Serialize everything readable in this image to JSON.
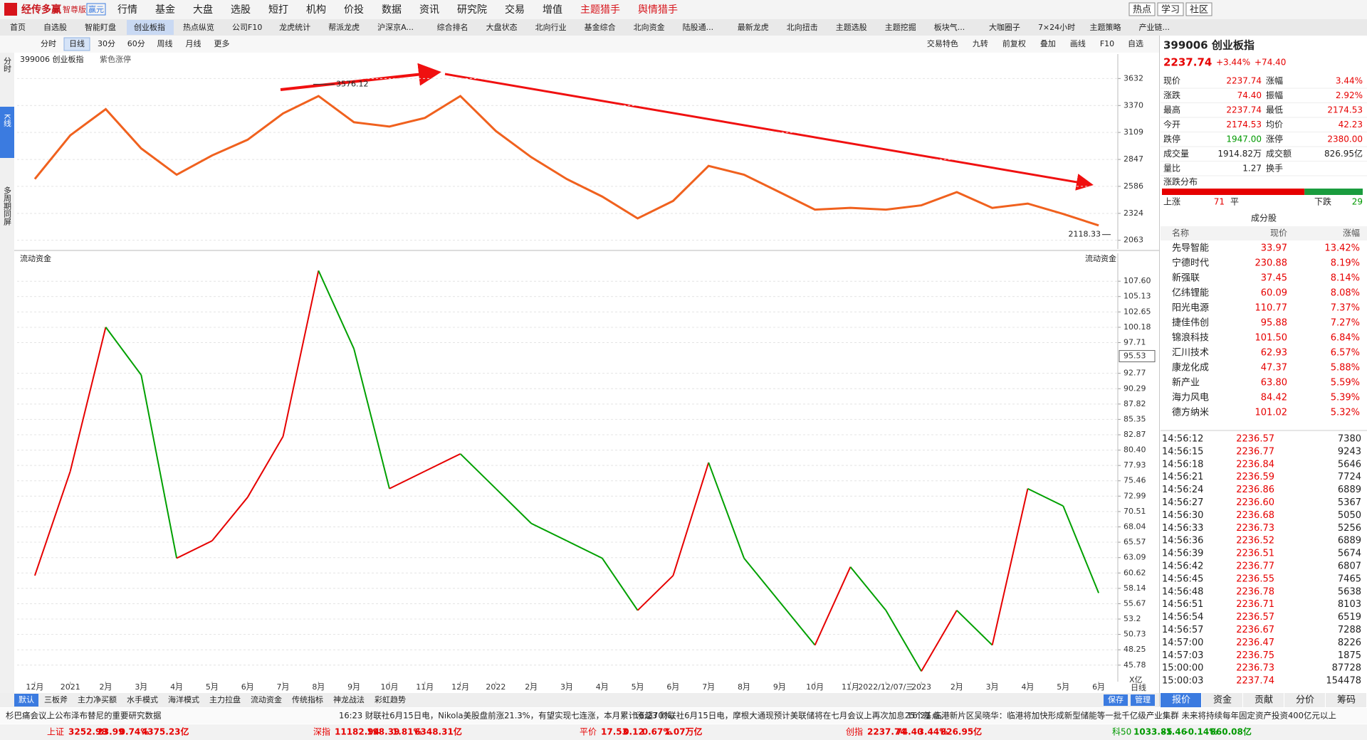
{
  "app": {
    "logo": "经传多赢",
    "edition": "智尊版",
    "badge": "赢元"
  },
  "menu": [
    "行情",
    "基金",
    "大盘",
    "选股",
    "短打",
    "机构",
    "价投",
    "数据",
    "资讯",
    "研究院",
    "交易",
    "增值",
    "主题猎手",
    "舆情猎手"
  ],
  "top_right": [
    "热点",
    "学习",
    "社区"
  ],
  "tabs": [
    "首页",
    "自选股",
    "智能盯盘",
    "创业板指",
    "热点纵览",
    "公司F10",
    "龙虎统计",
    "帮派龙虎",
    "沪深京A...",
    "综合排名",
    "大盘状态",
    "北向行业",
    "基金综合",
    "北向资金",
    "陆股通...",
    "最新龙虎",
    "北向扭击",
    "主题选股",
    "主题挖掘",
    "板块气...",
    "大咖圈子",
    "7×24小时",
    "主题策略",
    "产业链..."
  ],
  "periods": [
    "分时",
    "日线",
    "30分",
    "60分",
    "周线",
    "月线",
    "更多"
  ],
  "tools": [
    "交易特色",
    "九转",
    "前复权",
    "叠加",
    "画线",
    "F10",
    "自选"
  ],
  "side_tabs": [
    "分时",
    "K线",
    "多周期同屏"
  ],
  "chart_data": [
    {
      "type": "line",
      "title": "399006 创业板指",
      "subtitle": "紫色涨停",
      "color": "#f0611e",
      "values": [
        2657,
        3081,
        3335,
        2954,
        2699,
        2886,
        3038,
        3293,
        3462,
        3208,
        3166,
        3250,
        3462,
        3123,
        2869,
        2657,
        2487,
        2275,
        2445,
        2784,
        2699,
        2530,
        2360,
        2377,
        2360,
        2402,
        2530,
        2377,
        2419,
        2318,
        2207
      ],
      "ylim": [
        1978,
        3869
      ],
      "yticks": [
        2063,
        2324,
        2586,
        2847,
        3109,
        3370,
        3632
      ],
      "grid": true,
      "high": 3576.12,
      "low": 2118.33
    },
    {
      "type": "line",
      "title": "流动资金",
      "right_title": "流动资金",
      "axis_unit": "X亿",
      "period_label": "日线",
      "categories": [
        "12月",
        "2021",
        "2月",
        "3月",
        "4月",
        "5月",
        "6月",
        "7月",
        "8月",
        "9月",
        "10月",
        "11月",
        "12月",
        "2022",
        "2月",
        "3月",
        "4月",
        "5月",
        "6月",
        "7月",
        "8月",
        "9月",
        "10月",
        "11月",
        "2022/12/07/三",
        "2023",
        "2月",
        "3月",
        "4月",
        "5月",
        "6月"
      ],
      "values": [
        60.2,
        77.0,
        100.2,
        92.5,
        63.0,
        65.8,
        72.8,
        82.6,
        109.3,
        96.7,
        74.2,
        77.0,
        79.8,
        74.2,
        68.6,
        65.8,
        63.0,
        54.6,
        60.2,
        78.4,
        63.0,
        56.0,
        49.0,
        61.6,
        54.6,
        44.8,
        54.6,
        49.0,
        74.2,
        71.4,
        57.4
      ],
      "up_color": "#e60000",
      "down_color": "#00a000",
      "ylim": [
        43.12,
        112.09
      ],
      "yticks": [
        45.78,
        48.25,
        50.73,
        53.2,
        55.67,
        58.14,
        60.62,
        63.09,
        65.57,
        68.04,
        70.51,
        72.99,
        75.46,
        77.93,
        {
          "value": 80.4,
          "label": "80.40"
        },
        82.87,
        85.35,
        87.82,
        90.29,
        92.77,
        97.71,
        100.18,
        102.65,
        105.13,
        {
          "value": 107.6,
          "label": "107.60"
        }
      ],
      "grid": true,
      "current_value": 95.53
    }
  ],
  "quote": {
    "code_name": "399006 创业板指",
    "price": "2237.74",
    "change_pct": "+3.44%",
    "change": "+74.40",
    "rows": [
      [
        "现价",
        "2237.74",
        "涨幅",
        "3.44%"
      ],
      [
        "涨跌",
        "74.40",
        "振幅",
        "2.92%"
      ],
      [
        "最高",
        "2237.74",
        "最低",
        "2174.53"
      ],
      [
        "今开",
        "2174.53",
        "均价",
        "42.23"
      ],
      [
        "跌停",
        "1947.00",
        "涨停",
        "2380.00"
      ],
      [
        "成交量",
        "1914.82万",
        "成交额",
        "826.95亿"
      ],
      [
        "量比",
        "1.27",
        "换手",
        ""
      ]
    ]
  },
  "distribution": {
    "title": "涨跌分布",
    "up_label": "上涨",
    "up": 71,
    "flat_label": "平",
    "down_label": "下跌",
    "down": 29
  },
  "constituents": {
    "title": "成分股",
    "headers": [
      "名称",
      "现价",
      "涨幅"
    ],
    "rows": [
      [
        "先导智能",
        "33.97",
        "13.42%"
      ],
      [
        "宁德时代",
        "230.88",
        "8.19%"
      ],
      [
        "新强联",
        "37.45",
        "8.14%"
      ],
      [
        "亿纬锂能",
        "60.09",
        "8.08%"
      ],
      [
        "阳光电源",
        "110.77",
        "7.37%"
      ],
      [
        "捷佳伟创",
        "95.88",
        "7.27%"
      ],
      [
        "锦浪科技",
        "101.50",
        "6.84%"
      ],
      [
        "汇川技术",
        "62.93",
        "6.57%"
      ],
      [
        "康龙化成",
        "47.37",
        "5.88%"
      ],
      [
        "新产业",
        "63.80",
        "5.59%"
      ],
      [
        "海力风电",
        "84.42",
        "5.39%"
      ],
      [
        "德方纳米",
        "101.02",
        "5.32%"
      ]
    ]
  },
  "trades": [
    [
      "14:56:12",
      "2236.57",
      "7380"
    ],
    [
      "14:56:15",
      "2236.77",
      "9243"
    ],
    [
      "14:56:18",
      "2236.84",
      "5646"
    ],
    [
      "14:56:21",
      "2236.59",
      "7724"
    ],
    [
      "14:56:24",
      "2236.86",
      "6889"
    ],
    [
      "14:56:27",
      "2236.60",
      "5367"
    ],
    [
      "14:56:30",
      "2236.68",
      "5050"
    ],
    [
      "14:56:33",
      "2236.73",
      "5256"
    ],
    [
      "14:56:36",
      "2236.52",
      "6889"
    ],
    [
      "14:56:39",
      "2236.51",
      "5674"
    ],
    [
      "14:56:42",
      "2236.77",
      "6807"
    ],
    [
      "14:56:45",
      "2236.55",
      "7465"
    ],
    [
      "14:56:48",
      "2236.78",
      "5638"
    ],
    [
      "14:56:51",
      "2236.71",
      "8103"
    ],
    [
      "14:56:54",
      "2236.57",
      "6519"
    ],
    [
      "14:56:57",
      "2236.67",
      "7288"
    ],
    [
      "14:57:00",
      "2236.47",
      "8226"
    ],
    [
      "14:57:03",
      "2236.75",
      "1875"
    ],
    [
      "15:00:00",
      "2236.73",
      "87728"
    ],
    [
      "15:00:03",
      "2237.74",
      "154478"
    ]
  ],
  "panel_tabs": [
    "报价",
    "资金",
    "贡献",
    "分价",
    "筹码"
  ],
  "indicator_tabs": [
    "默认",
    "三板斧",
    "主力净买额",
    "水手模式",
    "海洋模式",
    "主力拉盘",
    "流动资金",
    "传统指标",
    "神龙战法",
    "彩虹趋势"
  ],
  "indicator_right": [
    "保存",
    "管理"
  ],
  "news": [
    "杉巴痛会议上公布泽布替尼的重要研究数据",
    "16:23 财联社6月15日电，Nikola美股盘前涨21.3%，有望实现七连涨，本月累计涨超70%。",
    "16:23 财联社6月15日电，摩根大通现预计美联储将在七月会议上再次加息25个基点。",
    "16:21 临港新片区吴晓华：临港将加快形成新型储能等一批千亿级产业集群 未来将持续每年固定资产投资400亿元以上"
  ],
  "indices": [
    [
      "上证",
      "3252.98",
      "23.99",
      "0.74%",
      "4375.23亿"
    ],
    [
      "深指",
      "11182.94",
      "198.39",
      "1.81%",
      "6348.31亿"
    ],
    [
      "平价",
      "17.53",
      "0.12",
      "0.67%",
      "1.07万亿"
    ],
    [
      "创指",
      "2237.74",
      "74.40",
      "3.44%",
      "826.95亿"
    ],
    [
      "科50",
      "1033.85",
      "-1.46",
      "-0.14%",
      "860.08亿"
    ]
  ]
}
